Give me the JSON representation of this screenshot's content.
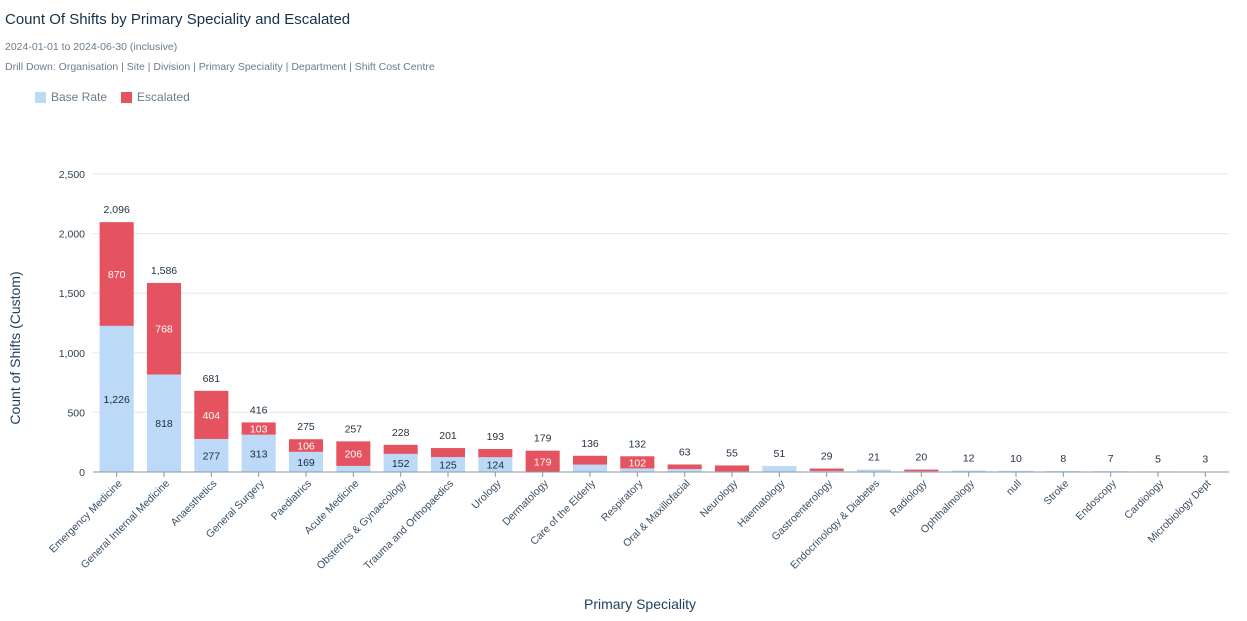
{
  "header": {
    "title": "Count Of Shifts by Primary Speciality and Escalated",
    "date_range": "2024-01-01 to 2024-06-30 (inclusive)",
    "drill_down": "Drill Down: Organisation | Site | Division | Primary Speciality | Department | Shift Cost Centre"
  },
  "colors": {
    "base": "#bcd9f7",
    "escalated": "#e65360",
    "grid": "#e6e9ec"
  },
  "chart_data": {
    "type": "bar",
    "stacked": true,
    "title": "Count Of Shifts by Primary Speciality and Escalated",
    "xlabel": "Primary Speciality",
    "ylabel": "Count of Shifts (Custom)",
    "ylim": [
      0,
      2500
    ],
    "yticks": [
      0,
      500,
      1000,
      1500,
      2000,
      2500
    ],
    "ytick_labels": [
      "0",
      "500",
      "1,000",
      "1,500",
      "2,000",
      "2,500"
    ],
    "legend": [
      "Base Rate",
      "Escalated"
    ],
    "categories": [
      "Emergency Medicine",
      "General Internal Medicine",
      "Anaesthetics",
      "General Surgery",
      "Paediatrics",
      "Acute Medicine",
      "Obstetrics & Gynaecology",
      "Trauma and Orthopaedics",
      "Urology",
      "Dermatology",
      "Care of the Elderly",
      "Respiratory",
      "Oral & Maxillofacial",
      "Neurology",
      "Haematology",
      "Gastroenterology",
      "Endocrinology & Diabetes",
      "Radiology",
      "Ophthalmology",
      "null",
      "Stroke",
      "Endoscopy",
      "Cardiology",
      "Microbiology Dept"
    ],
    "series": [
      {
        "name": "Base Rate",
        "values": [
          1226,
          818,
          277,
          313,
          169,
          51,
          152,
          125,
          124,
          0,
          62,
          30,
          25,
          5,
          51,
          9,
          21,
          6,
          12,
          10,
          8,
          7,
          5,
          3
        ]
      },
      {
        "name": "Escalated",
        "values": [
          870,
          768,
          404,
          103,
          106,
          206,
          76,
          76,
          69,
          179,
          74,
          102,
          38,
          50,
          0,
          20,
          0,
          14,
          0,
          0,
          0,
          0,
          0,
          0
        ]
      }
    ],
    "totals": [
      2096,
      1586,
      681,
      416,
      275,
      257,
      228,
      201,
      193,
      179,
      136,
      132,
      63,
      55,
      51,
      29,
      21,
      20,
      12,
      10,
      8,
      7,
      5,
      3
    ],
    "total_labels": [
      "2,096",
      "1,586",
      "681",
      "416",
      "275",
      "257",
      "228",
      "201",
      "193",
      "179",
      "136",
      "132",
      "63",
      "55",
      "51",
      "29",
      "21",
      "20",
      "12",
      "10",
      "8",
      "7",
      "5",
      "3"
    ],
    "base_labels": [
      "1,226",
      "818",
      "277",
      "313",
      "169",
      "",
      "152",
      "125",
      "124",
      "",
      "",
      "",
      "",
      "",
      "",
      "",
      "",
      "",
      "",
      "",
      "",
      "",
      "",
      ""
    ],
    "escalated_labels": [
      "870",
      "768",
      "404",
      "103",
      "106",
      "206",
      "",
      "",
      "",
      "179",
      "",
      "102",
      "",
      "",
      "",
      "",
      "",
      "",
      "",
      "",
      "",
      "",
      "",
      ""
    ]
  }
}
